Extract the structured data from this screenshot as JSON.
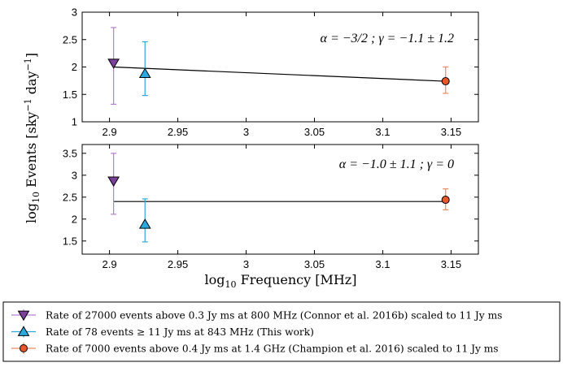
{
  "chart_data": [
    {
      "type": "scatter",
      "panel": "top",
      "annotation": "α = −3/2 ; γ = −1.1 ± 1.2",
      "xlim": [
        2.88,
        3.17
      ],
      "ylim": [
        1,
        3
      ],
      "xticks": [
        2.9,
        2.95,
        3.0,
        3.05,
        3.1,
        3.15
      ],
      "xtick_labels": [
        "2.9",
        "2.95",
        "3",
        "3.05",
        "3.1",
        "3.15"
      ],
      "yticks": [
        1,
        1.5,
        2,
        2.5,
        3
      ],
      "ytick_labels": [
        "1",
        "1.5",
        "2",
        "2.5",
        "3"
      ],
      "grid": false,
      "points": [
        {
          "series": 0,
          "x": 2.903,
          "y": 2.07,
          "yerr_low": 1.32,
          "yerr_high": 2.72
        },
        {
          "series": 1,
          "x": 2.926,
          "y": 1.88,
          "yerr_low": 1.48,
          "yerr_high": 2.46
        },
        {
          "series": 2,
          "x": 3.146,
          "y": 1.74,
          "yerr_low": 1.52,
          "yerr_high": 2.0
        }
      ],
      "fit_line": {
        "x": [
          2.903,
          3.146
        ],
        "y": [
          2.0,
          1.74
        ]
      }
    },
    {
      "type": "scatter",
      "panel": "bottom",
      "annotation": "α = −1.0 ± 1.1 ; γ = 0",
      "xlim": [
        2.88,
        3.17
      ],
      "ylim": [
        1.2,
        3.7
      ],
      "xticks": [
        2.9,
        2.95,
        3.0,
        3.05,
        3.1,
        3.15
      ],
      "xtick_labels": [
        "2.9",
        "2.95",
        "3",
        "3.05",
        "3.1",
        "3.15"
      ],
      "yticks": [
        1.5,
        2,
        2.5,
        3,
        3.5
      ],
      "ytick_labels": [
        "1.5",
        "2",
        "2.5",
        "3",
        "3.5"
      ],
      "grid": false,
      "points": [
        {
          "series": 0,
          "x": 2.903,
          "y": 2.87,
          "yerr_low": 2.11,
          "yerr_high": 3.5
        },
        {
          "series": 1,
          "x": 2.926,
          "y": 1.88,
          "yerr_low": 1.48,
          "yerr_high": 2.46
        },
        {
          "series": 2,
          "x": 3.146,
          "y": 2.44,
          "yerr_low": 2.21,
          "yerr_high": 2.69
        }
      ],
      "fit_line": {
        "x": [
          2.903,
          3.146
        ],
        "y": [
          2.4,
          2.4
        ]
      }
    }
  ],
  "axes": {
    "ylabel": "log10 Events [sky−1 day−1]",
    "xlabel": "log10 Frequency [MHz]"
  },
  "legend": {
    "placement": "bottom",
    "entries": [
      {
        "label": "Rate of 27000 events above 0.3 Jy ms at 800 MHz (Connor et al. 2016b) scaled to 11 Jy ms",
        "color": "#7b3f9e",
        "line_color": "#b57fd0",
        "marker": "triangle-down"
      },
      {
        "label": "Rate of 78 events ≥ 11 Jy ms at 843 MHz (This work)",
        "color": "#29a9df",
        "line_color": "#29a9df",
        "marker": "triangle-up"
      },
      {
        "label": "Rate of 7000 events above 0.4 Jy ms at 1.4 GHz (Champion et al. 2016) scaled to 11 Jy ms",
        "color": "#e8572a",
        "line_color": "#f08a5d",
        "marker": "circle"
      }
    ]
  }
}
